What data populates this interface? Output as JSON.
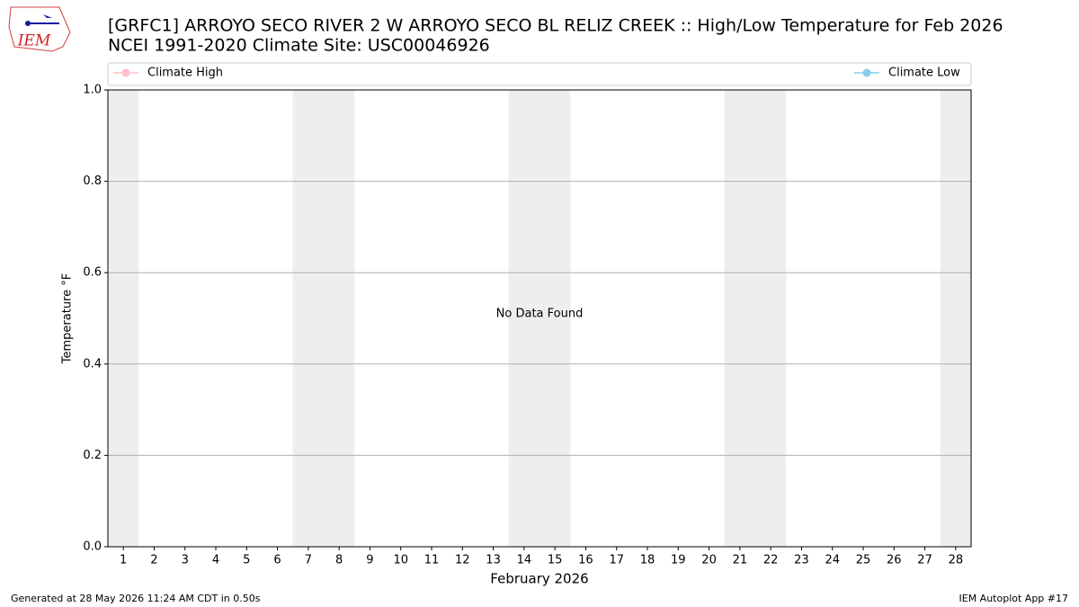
{
  "chart_data": {
    "type": "line",
    "title": "[GRFC1] ARROYO SECO RIVER 2 W ARROYO SECO BL RELIZ CREEK :: High/Low Temperature for Feb 2026",
    "subtitle": "NCEI 1991-2020 Climate Site: USC00046926",
    "xlabel": "February 2026",
    "ylabel": "Temperature °F",
    "annotation": "No Data Found",
    "x": [],
    "series": [
      {
        "name": "Climate High",
        "color": "#ffc0cb",
        "values": []
      },
      {
        "name": "Climate Low",
        "color": "#87ceeb",
        "values": []
      }
    ],
    "xlim": [
      0.5,
      28.5
    ],
    "xticks": [
      1,
      2,
      3,
      4,
      5,
      6,
      7,
      8,
      9,
      10,
      11,
      12,
      13,
      14,
      15,
      16,
      17,
      18,
      19,
      20,
      21,
      22,
      23,
      24,
      25,
      26,
      27,
      28
    ],
    "ylim": [
      0,
      1
    ],
    "yticks": [
      {
        "value": 0,
        "label": "0.0"
      },
      0.2,
      0.4,
      0.6,
      0.8,
      {
        "value": 1,
        "label": "1.0"
      }
    ],
    "grid": true,
    "shaded_days": [
      1,
      7,
      8,
      14,
      15,
      21,
      22,
      28
    ],
    "shade_color": "#eeeeee"
  },
  "logo": "IEM",
  "footer_left": "Generated at 28 May 2026 11:24 AM CDT in 0.50s",
  "footer_right": "IEM Autoplot App #17"
}
